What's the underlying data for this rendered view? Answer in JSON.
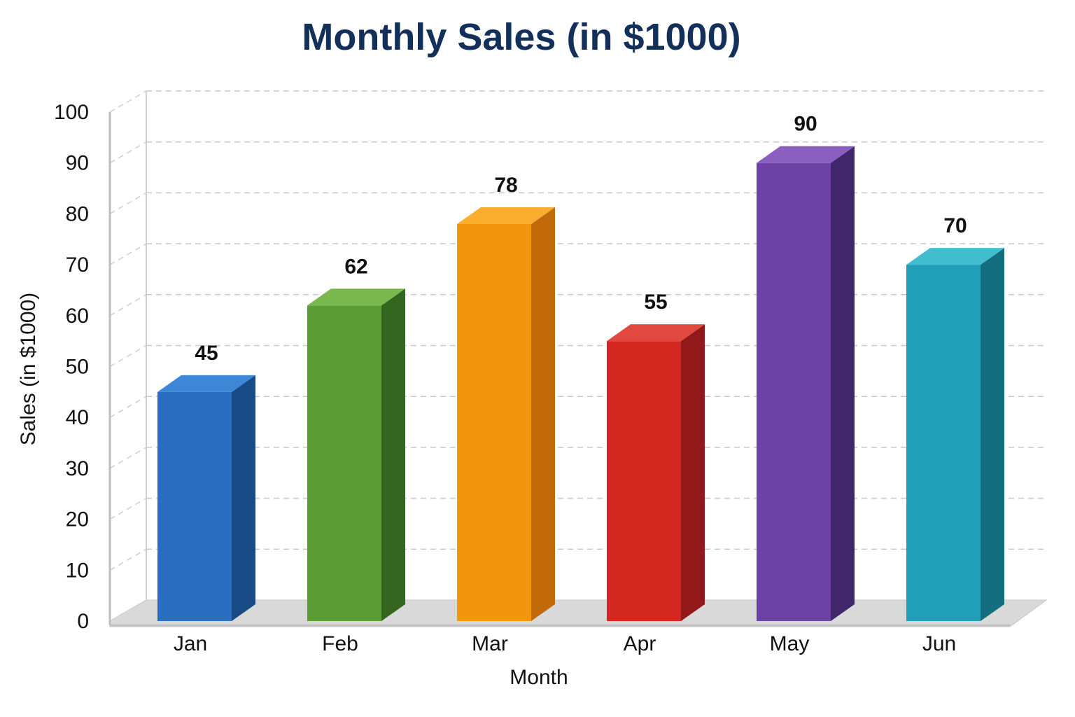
{
  "chart_data": {
    "type": "bar",
    "title": "Monthly Sales (in $1000)",
    "xlabel": "Month",
    "ylabel": "Sales (in $1000)",
    "categories": [
      "Jan",
      "Feb",
      "Mar",
      "Apr",
      "May",
      "Jun"
    ],
    "values": [
      45,
      62,
      78,
      55,
      90,
      70
    ],
    "ylim": [
      0,
      100
    ],
    "yticks": [
      0,
      10,
      20,
      30,
      40,
      50,
      60,
      70,
      80,
      90,
      100
    ],
    "grid": true,
    "legend": "none",
    "style": "3d",
    "bar_colors": [
      {
        "front": "#2a6fbf",
        "top": "#3e86d6",
        "side": "#184a86"
      },
      {
        "front": "#5a9e33",
        "top": "#79b84d",
        "side": "#356620"
      },
      {
        "front": "#f5950d",
        "top": "#fbad2e",
        "side": "#c2690a"
      },
      {
        "front": "#d4271f",
        "top": "#e04840",
        "side": "#92181a"
      },
      {
        "front": "#6d41a6",
        "top": "#8a5fc0",
        "side": "#40266b"
      },
      {
        "front": "#1fa0b8",
        "top": "#42bccf",
        "side": "#136e80"
      }
    ]
  }
}
